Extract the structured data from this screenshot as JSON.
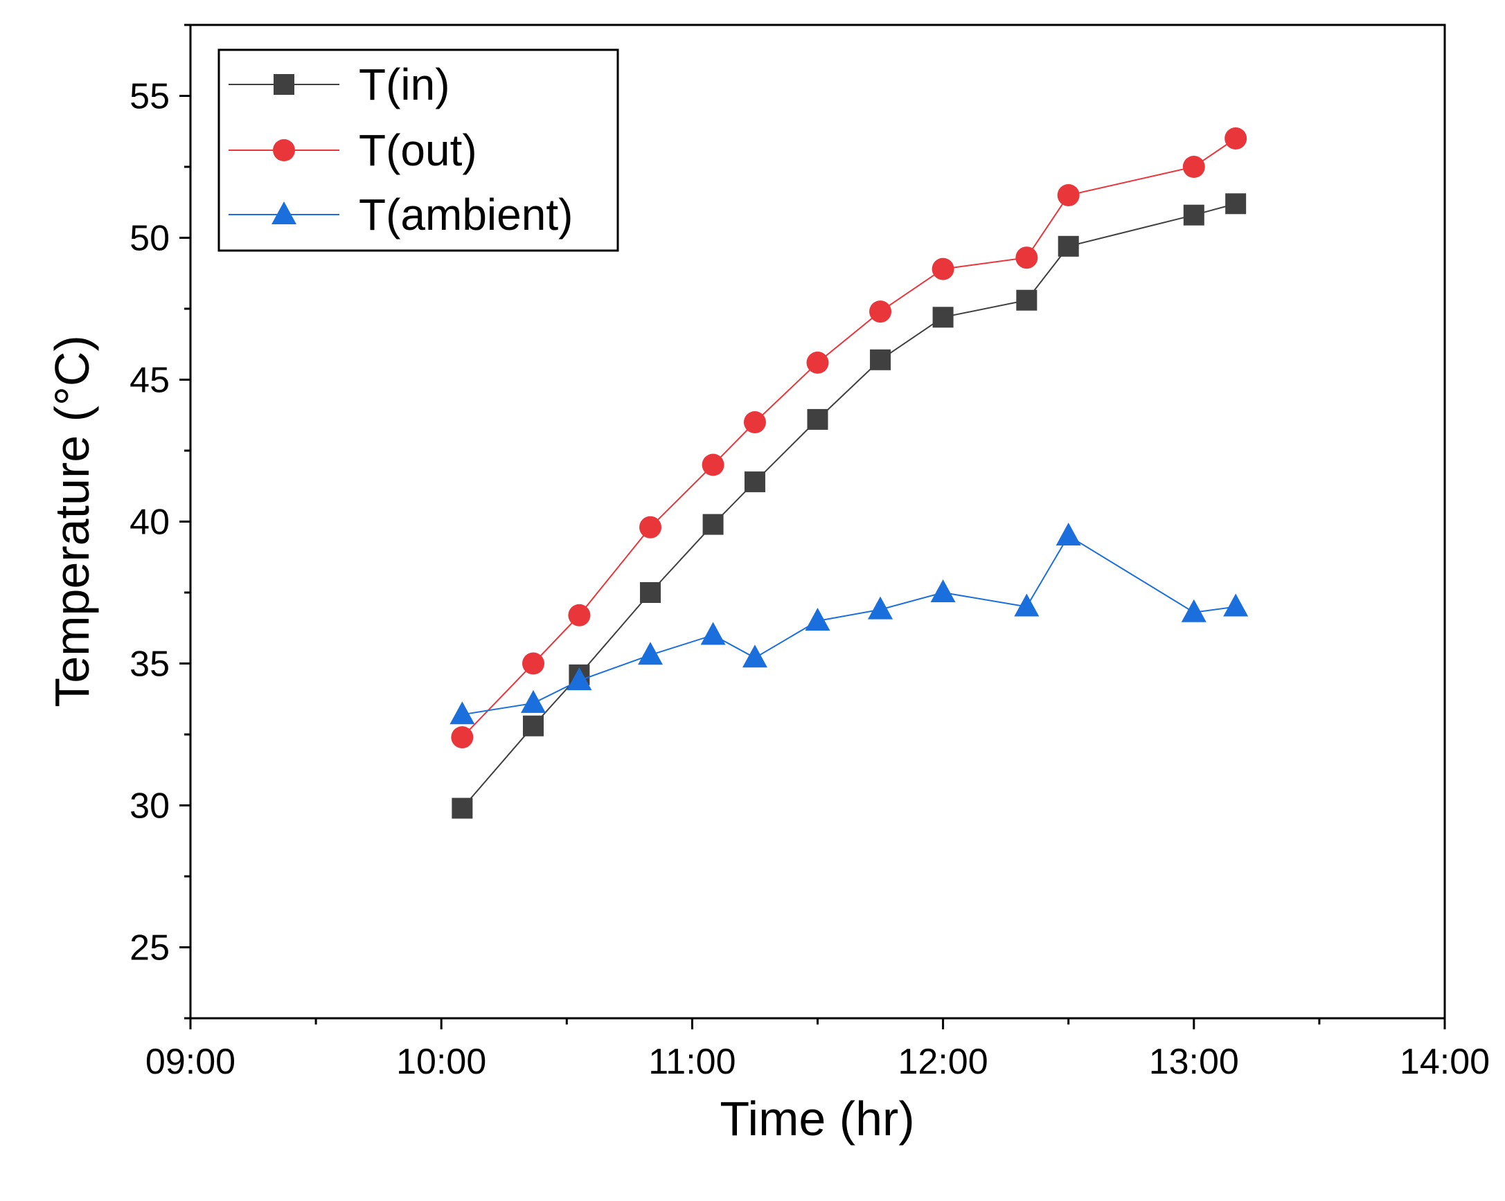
{
  "chart_data": {
    "type": "line",
    "title": "",
    "xlabel": "Time (hr)",
    "ylabel": "Temperature (°C)",
    "xlim": [
      "09:00",
      "14:00"
    ],
    "ylim": [
      22.5,
      57.5
    ],
    "x_ticks": [
      "09:00",
      "10:00",
      "11:00",
      "12:00",
      "13:00",
      "14:00"
    ],
    "y_ticks": [
      25,
      30,
      35,
      40,
      45,
      50,
      55
    ],
    "grid": false,
    "legend_position": "top-left",
    "x": [
      "10:05",
      "10:22",
      "10:33",
      "10:50",
      "11:05",
      "11:15",
      "11:30",
      "11:45",
      "12:00",
      "12:20",
      "12:30",
      "13:00",
      "13:10"
    ],
    "series": [
      {
        "name": "T(in)",
        "color": "#404040",
        "marker": "square",
        "values": [
          29.9,
          32.8,
          34.6,
          37.5,
          39.9,
          41.4,
          43.6,
          45.7,
          47.2,
          47.8,
          49.7,
          50.8,
          51.2
        ]
      },
      {
        "name": "T(out)",
        "color": "#e8363a",
        "marker": "circle",
        "values": [
          32.4,
          35.0,
          36.7,
          39.8,
          42.0,
          43.5,
          45.6,
          47.4,
          48.9,
          49.3,
          51.5,
          52.5,
          53.5
        ]
      },
      {
        "name": "T(ambient)",
        "color": "#1a6fdc",
        "marker": "triangle",
        "values": [
          33.2,
          33.6,
          34.4,
          35.3,
          36.0,
          35.2,
          36.5,
          36.9,
          37.5,
          37.0,
          39.5,
          36.8,
          37.0
        ]
      }
    ]
  }
}
